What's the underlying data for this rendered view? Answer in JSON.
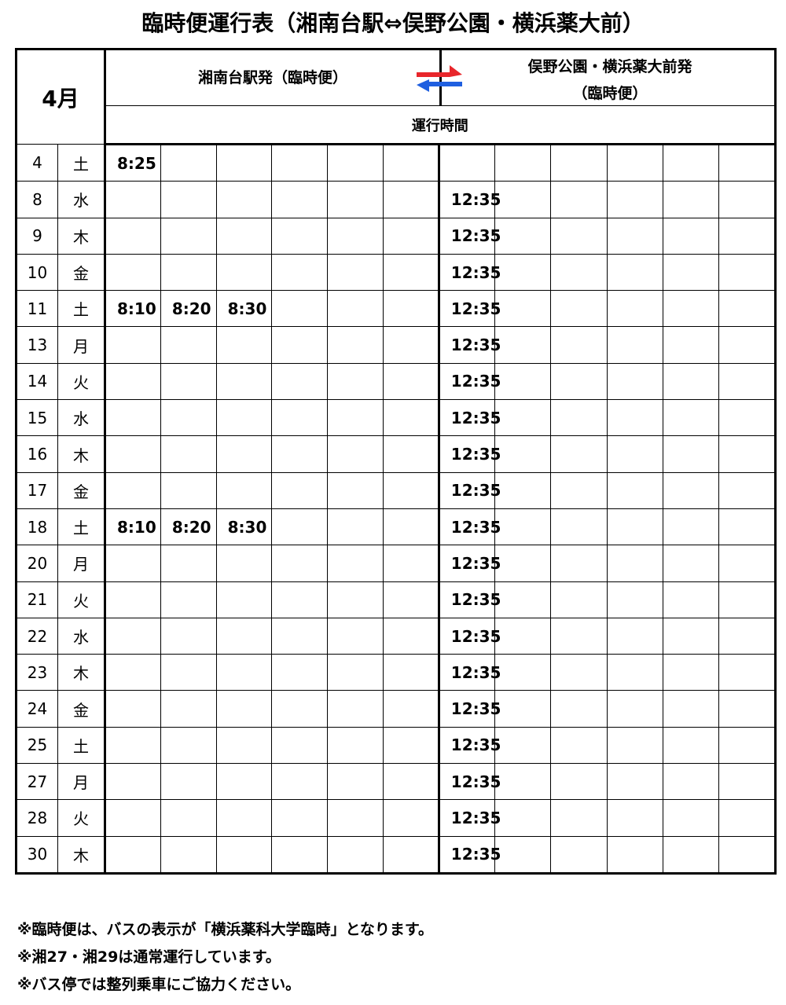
{
  "title": "臨時便運行表（湘南台駅⇔俣野公園・横浜薬大前）",
  "header": {
    "month": "4月",
    "outbound": "湘南台駅発（臨時便）",
    "return_line1": "俣野公園・横浜薬大前発",
    "return_line2": "（臨時便）",
    "subheader": "運行時間",
    "arrow_icon": "bidirectional-arrows-icon",
    "colors": {
      "arrow_right": "#e8262b",
      "arrow_left": "#1f5fe0"
    }
  },
  "rows": [
    {
      "day": "4",
      "weekday": "土",
      "out": [
        "8:25",
        "",
        "",
        "",
        "",
        ""
      ],
      "ret": [
        "",
        "",
        "",
        "",
        "",
        ""
      ]
    },
    {
      "day": "8",
      "weekday": "水",
      "out": [
        "",
        "",
        "",
        "",
        "",
        ""
      ],
      "ret": [
        "12:35",
        "",
        "",
        "",
        "",
        ""
      ]
    },
    {
      "day": "9",
      "weekday": "木",
      "out": [
        "",
        "",
        "",
        "",
        "",
        ""
      ],
      "ret": [
        "12:35",
        "",
        "",
        "",
        "",
        ""
      ]
    },
    {
      "day": "10",
      "weekday": "金",
      "out": [
        "",
        "",
        "",
        "",
        "",
        ""
      ],
      "ret": [
        "12:35",
        "",
        "",
        "",
        "",
        ""
      ]
    },
    {
      "day": "11",
      "weekday": "土",
      "out": [
        "8:10",
        "8:20",
        "8:30",
        "",
        "",
        ""
      ],
      "ret": [
        "12:35",
        "",
        "",
        "",
        "",
        ""
      ]
    },
    {
      "day": "13",
      "weekday": "月",
      "out": [
        "",
        "",
        "",
        "",
        "",
        ""
      ],
      "ret": [
        "12:35",
        "",
        "",
        "",
        "",
        ""
      ]
    },
    {
      "day": "14",
      "weekday": "火",
      "out": [
        "",
        "",
        "",
        "",
        "",
        ""
      ],
      "ret": [
        "12:35",
        "",
        "",
        "",
        "",
        ""
      ]
    },
    {
      "day": "15",
      "weekday": "水",
      "out": [
        "",
        "",
        "",
        "",
        "",
        ""
      ],
      "ret": [
        "12:35",
        "",
        "",
        "",
        "",
        ""
      ]
    },
    {
      "day": "16",
      "weekday": "木",
      "out": [
        "",
        "",
        "",
        "",
        "",
        ""
      ],
      "ret": [
        "12:35",
        "",
        "",
        "",
        "",
        ""
      ]
    },
    {
      "day": "17",
      "weekday": "金",
      "out": [
        "",
        "",
        "",
        "",
        "",
        ""
      ],
      "ret": [
        "12:35",
        "",
        "",
        "",
        "",
        ""
      ]
    },
    {
      "day": "18",
      "weekday": "土",
      "out": [
        "8:10",
        "8:20",
        "8:30",
        "",
        "",
        ""
      ],
      "ret": [
        "12:35",
        "",
        "",
        "",
        "",
        ""
      ]
    },
    {
      "day": "20",
      "weekday": "月",
      "out": [
        "",
        "",
        "",
        "",
        "",
        ""
      ],
      "ret": [
        "12:35",
        "",
        "",
        "",
        "",
        ""
      ]
    },
    {
      "day": "21",
      "weekday": "火",
      "out": [
        "",
        "",
        "",
        "",
        "",
        ""
      ],
      "ret": [
        "12:35",
        "",
        "",
        "",
        "",
        ""
      ]
    },
    {
      "day": "22",
      "weekday": "水",
      "out": [
        "",
        "",
        "",
        "",
        "",
        ""
      ],
      "ret": [
        "12:35",
        "",
        "",
        "",
        "",
        ""
      ]
    },
    {
      "day": "23",
      "weekday": "木",
      "out": [
        "",
        "",
        "",
        "",
        "",
        ""
      ],
      "ret": [
        "12:35",
        "",
        "",
        "",
        "",
        ""
      ]
    },
    {
      "day": "24",
      "weekday": "金",
      "out": [
        "",
        "",
        "",
        "",
        "",
        ""
      ],
      "ret": [
        "12:35",
        "",
        "",
        "",
        "",
        ""
      ]
    },
    {
      "day": "25",
      "weekday": "土",
      "out": [
        "",
        "",
        "",
        "",
        "",
        ""
      ],
      "ret": [
        "12:35",
        "",
        "",
        "",
        "",
        ""
      ]
    },
    {
      "day": "27",
      "weekday": "月",
      "out": [
        "",
        "",
        "",
        "",
        "",
        ""
      ],
      "ret": [
        "12:35",
        "",
        "",
        "",
        "",
        ""
      ]
    },
    {
      "day": "28",
      "weekday": "火",
      "out": [
        "",
        "",
        "",
        "",
        "",
        ""
      ],
      "ret": [
        "12:35",
        "",
        "",
        "",
        "",
        ""
      ]
    },
    {
      "day": "30",
      "weekday": "木",
      "out": [
        "",
        "",
        "",
        "",
        "",
        ""
      ],
      "ret": [
        "12:35",
        "",
        "",
        "",
        "",
        ""
      ]
    }
  ],
  "notes": [
    "※臨時便は、バスの表示が「横浜薬科大学臨時」となります。",
    "※湘27・湘29は通常運行しています。",
    "※バス停では整列乗車にご協力ください。"
  ]
}
